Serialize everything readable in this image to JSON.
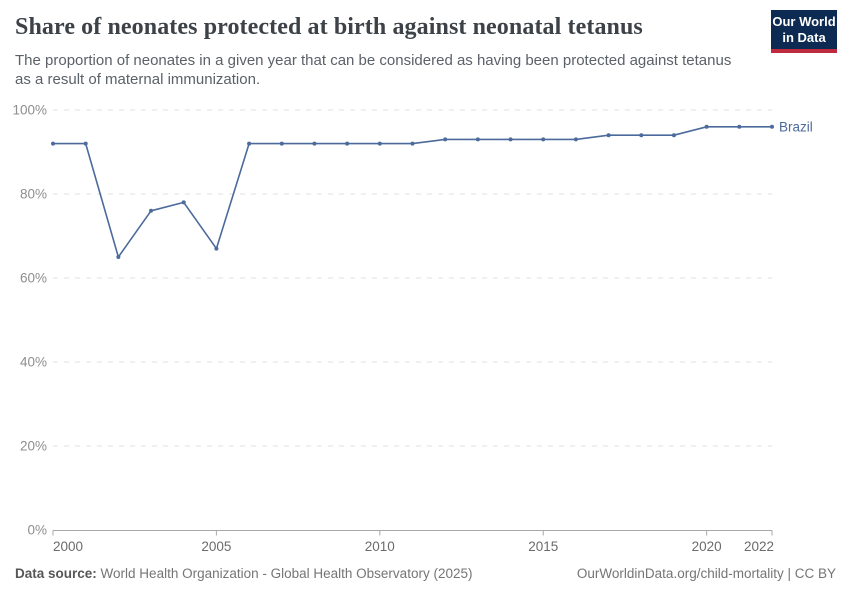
{
  "header": {
    "title": "Share of neonates protected at birth against neonatal tetanus",
    "subtitle": "The proportion of neonates in a given year that can be considered as having been protected against tetanus as a result of maternal immunization.",
    "logo": {
      "line1": "Our World",
      "line2": "in Data",
      "bg_color": "#0d2a52",
      "accent_color": "#bf2b3e"
    }
  },
  "chart_data": {
    "type": "line",
    "title": "Share of neonates protected at birth against neonatal tetanus",
    "xlabel": "",
    "ylabel": "",
    "xlim": [
      2000,
      2022
    ],
    "ylim": [
      0,
      100
    ],
    "x_ticks": [
      2000,
      2005,
      2010,
      2015,
      2020,
      2022
    ],
    "y_ticks": [
      0,
      20,
      40,
      60,
      80,
      100
    ],
    "y_tick_suffix": "%",
    "grid": "horizontal-dashed",
    "legend_position": "line-end-label",
    "x": [
      2000,
      2001,
      2002,
      2003,
      2004,
      2005,
      2006,
      2007,
      2008,
      2009,
      2010,
      2011,
      2012,
      2013,
      2014,
      2015,
      2016,
      2017,
      2018,
      2019,
      2020,
      2021,
      2022
    ],
    "series": [
      {
        "name": "Brazil",
        "color": "#4C6A9C",
        "values": [
          92,
          92,
          65,
          76,
          78,
          67,
          92,
          92,
          92,
          92,
          92,
          92,
          93,
          93,
          93,
          93,
          93,
          94,
          94,
          94,
          96,
          96,
          96
        ]
      }
    ]
  },
  "footer": {
    "source_label": "Data source:",
    "source_text": "World Health Organization - Global Health Observatory (2025)",
    "credit": "OurWorldinData.org/child-mortality | CC BY"
  }
}
